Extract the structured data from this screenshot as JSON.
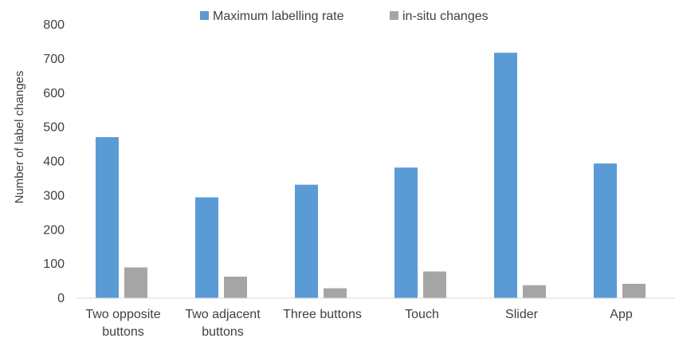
{
  "chart_data": {
    "type": "bar",
    "title": "",
    "xlabel": "",
    "ylabel": "Number of label changes",
    "ylim": [
      0,
      800
    ],
    "yticks": [
      0,
      100,
      200,
      300,
      400,
      500,
      600,
      700,
      800
    ],
    "grid": false,
    "legend_position": "top",
    "categories": [
      [
        "Two opposite",
        "buttons"
      ],
      [
        "Two adjacent",
        "buttons"
      ],
      [
        "Three buttons"
      ],
      [
        "Touch"
      ],
      [
        "Slider"
      ],
      [
        "App"
      ]
    ],
    "series": [
      {
        "name": "Maximum labelling rate",
        "color": "#5b9bd5",
        "values": [
          471,
          295,
          332,
          382,
          718,
          394
        ]
      },
      {
        "name": "in-situ changes",
        "color": "#a5a5a5",
        "values": [
          90,
          63,
          29,
          78,
          38,
          42
        ]
      }
    ]
  }
}
